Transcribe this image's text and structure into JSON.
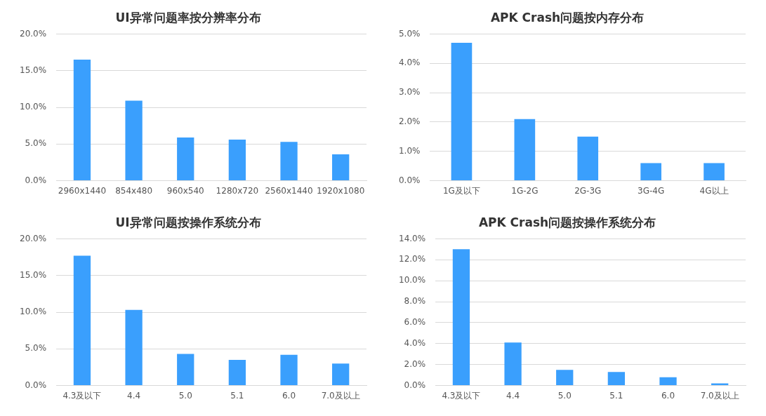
{
  "chart_data": [
    {
      "type": "bar",
      "title": "UI异常问题率按分辨率分布",
      "categories": [
        "2960x1440",
        "854x480",
        "960x540",
        "1280x720",
        "2560x1440",
        "1920x1080"
      ],
      "values": [
        16.5,
        10.9,
        5.9,
        5.6,
        5.3,
        3.6
      ],
      "color": "#3a9ffd",
      "ylim": [
        0,
        20
      ],
      "yticks": [
        {
          "value": 0,
          "label": "0.0%"
        },
        {
          "value": 5,
          "label": "5.0%"
        },
        {
          "value": 10,
          "label": "10.0%"
        },
        {
          "value": 15,
          "label": "15.0%"
        },
        {
          "value": 20,
          "label": "20.0%"
        }
      ],
      "grid": "y"
    },
    {
      "type": "bar",
      "title": "APK Crash问题按内存分布",
      "categories": [
        "1G及以下",
        "1G-2G",
        "2G-3G",
        "3G-4G",
        "4G以上"
      ],
      "values": [
        4.7,
        2.1,
        1.5,
        0.6,
        0.6
      ],
      "color": "#3a9ffd",
      "ylim": [
        0,
        5
      ],
      "yticks": [
        {
          "value": 0,
          "label": "0.0%"
        },
        {
          "value": 1,
          "label": "1.0%"
        },
        {
          "value": 2,
          "label": "2.0%"
        },
        {
          "value": 3,
          "label": "3.0%"
        },
        {
          "value": 4,
          "label": "4.0%"
        },
        {
          "value": 5,
          "label": "5.0%"
        }
      ],
      "grid": "y"
    },
    {
      "type": "bar",
      "title": "UI异常问题按操作系统分布",
      "categories": [
        "4.3及以下",
        "4.4",
        "5.0",
        "5.1",
        "6.0",
        "7.0及以上"
      ],
      "values": [
        17.7,
        10.3,
        4.3,
        3.5,
        4.2,
        3.0
      ],
      "color": "#3a9ffd",
      "ylim": [
        0,
        20
      ],
      "yticks": [
        {
          "value": 0,
          "label": "0.0%"
        },
        {
          "value": 5,
          "label": "5.0%"
        },
        {
          "value": 10,
          "label": "10.0%"
        },
        {
          "value": 15,
          "label": "15.0%"
        },
        {
          "value": 20,
          "label": "20.0%"
        }
      ],
      "grid": "y"
    },
    {
      "type": "bar",
      "title": "APK Crash问题按操作系统分布",
      "categories": [
        "4.3及以下",
        "4.4",
        "5.0",
        "5.1",
        "6.0",
        "7.0及以上"
      ],
      "values": [
        13.0,
        4.1,
        1.5,
        1.3,
        0.8,
        0.2
      ],
      "color": "#3a9ffd",
      "ylim": [
        0,
        14
      ],
      "yticks": [
        {
          "value": 0,
          "label": "0.0%"
        },
        {
          "value": 2,
          "label": "2.0%"
        },
        {
          "value": 4,
          "label": "4.0%"
        },
        {
          "value": 6,
          "label": "6.0%"
        },
        {
          "value": 8,
          "label": "8.0%"
        },
        {
          "value": 10,
          "label": "10.0%"
        },
        {
          "value": 12,
          "label": "12.0%"
        },
        {
          "value": 14,
          "label": "14.0%"
        }
      ],
      "grid": "y"
    }
  ]
}
